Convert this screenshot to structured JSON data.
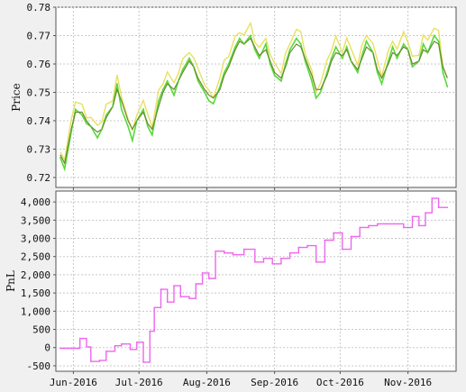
{
  "figure": {
    "background": "#f0f0f0",
    "plot_background": "#ffffff",
    "grid_color": "#c8c8c8"
  },
  "chart_data": [
    {
      "type": "line",
      "ylabel": "Price",
      "xlabel": "",
      "x_tick_labels": [
        "Jun-2016",
        "Jul-2016",
        "Aug-2016",
        "Sep-2016",
        "Oct-2016",
        "Nov-2016"
      ],
      "x_ticks": [
        "2016-06-01",
        "2016-07-01",
        "2016-08-01",
        "2016-09-01",
        "2016-10-01",
        "2016-11-01"
      ],
      "xlim": [
        "2016-05-24",
        "2016-11-23"
      ],
      "y_tick_labels": [
        "0.72",
        "0.73",
        "0.74",
        "0.75",
        "0.76",
        "0.77",
        "0.78"
      ],
      "ylim": [
        0.7165,
        0.78
      ],
      "grid": true,
      "colors": {
        "high": "#e8e060",
        "close": "#5ad83c",
        "smooth": "#6a8a30"
      },
      "x": [
        "2016-05-26",
        "2016-05-28",
        "2016-05-31",
        "2016-06-02",
        "2016-06-05",
        "2016-06-07",
        "2016-06-09",
        "2016-06-12",
        "2016-06-14",
        "2016-06-16",
        "2016-06-19",
        "2016-06-21",
        "2016-06-23",
        "2016-06-26",
        "2016-06-28",
        "2016-06-30",
        "2016-07-03",
        "2016-07-05",
        "2016-07-07",
        "2016-07-10",
        "2016-07-12",
        "2016-07-14",
        "2016-07-17",
        "2016-07-19",
        "2016-07-21",
        "2016-07-24",
        "2016-07-26",
        "2016-07-28",
        "2016-07-31",
        "2016-08-02",
        "2016-08-04",
        "2016-08-07",
        "2016-08-09",
        "2016-08-11",
        "2016-08-14",
        "2016-08-16",
        "2016-08-18",
        "2016-08-21",
        "2016-08-23",
        "2016-08-25",
        "2016-08-28",
        "2016-08-30",
        "2016-09-01",
        "2016-09-04",
        "2016-09-06",
        "2016-09-08",
        "2016-09-11",
        "2016-09-13",
        "2016-09-15",
        "2016-09-18",
        "2016-09-20",
        "2016-09-22",
        "2016-09-25",
        "2016-09-27",
        "2016-09-29",
        "2016-10-02",
        "2016-10-04",
        "2016-10-06",
        "2016-10-09",
        "2016-10-11",
        "2016-10-13",
        "2016-10-16",
        "2016-10-18",
        "2016-10-20",
        "2016-10-23",
        "2016-10-25",
        "2016-10-27",
        "2016-10-30",
        "2016-11-01",
        "2016-11-03",
        "2016-11-06",
        "2016-11-08",
        "2016-11-10",
        "2016-11-13",
        "2016-11-15",
        "2016-11-17",
        "2016-11-19"
      ],
      "series": [
        {
          "values": [
            0.727,
            0.723,
            0.736,
            0.744,
            0.742,
            0.739,
            0.738,
            0.734,
            0.737,
            0.742,
            0.745,
            0.753,
            0.744,
            0.738,
            0.733,
            0.74,
            0.744,
            0.738,
            0.735,
            0.747,
            0.751,
            0.754,
            0.749,
            0.754,
            0.758,
            0.762,
            0.759,
            0.754,
            0.75,
            0.747,
            0.746,
            0.752,
            0.757,
            0.76,
            0.766,
            0.769,
            0.767,
            0.77,
            0.765,
            0.762,
            0.767,
            0.76,
            0.756,
            0.754,
            0.76,
            0.765,
            0.769,
            0.767,
            0.761,
            0.754,
            0.748,
            0.75,
            0.757,
            0.762,
            0.766,
            0.762,
            0.766,
            0.761,
            0.757,
            0.763,
            0.768,
            0.764,
            0.757,
            0.753,
            0.761,
            0.766,
            0.762,
            0.767,
            0.765,
            0.759,
            0.761,
            0.767,
            0.764,
            0.77,
            0.768,
            0.757,
            0.752
          ]
        },
        {
          "values": [
            0.728,
            0.725,
            0.737,
            0.743,
            0.743,
            0.74,
            0.738,
            0.736,
            0.737,
            0.741,
            0.745,
            0.751,
            0.747,
            0.74,
            0.737,
            0.74,
            0.743,
            0.739,
            0.737,
            0.745,
            0.75,
            0.753,
            0.751,
            0.754,
            0.757,
            0.761,
            0.759,
            0.755,
            0.751,
            0.749,
            0.748,
            0.751,
            0.756,
            0.759,
            0.765,
            0.768,
            0.767,
            0.769,
            0.766,
            0.763,
            0.765,
            0.761,
            0.757,
            0.755,
            0.759,
            0.764,
            0.767,
            0.766,
            0.762,
            0.756,
            0.751,
            0.751,
            0.756,
            0.761,
            0.764,
            0.763,
            0.765,
            0.761,
            0.758,
            0.762,
            0.766,
            0.764,
            0.758,
            0.755,
            0.76,
            0.764,
            0.763,
            0.766,
            0.765,
            0.76,
            0.761,
            0.765,
            0.764,
            0.768,
            0.767,
            0.759,
            0.755
          ]
        }
      ]
    },
    {
      "type": "line",
      "ylabel": "PnL",
      "xlabel": "",
      "x_tick_labels": [
        "Jun-2016",
        "Jul-2016",
        "Aug-2016",
        "Sep-2016",
        "Oct-2016",
        "Nov-2016"
      ],
      "x_ticks": [
        "2016-06-01",
        "2016-07-01",
        "2016-08-01",
        "2016-09-01",
        "2016-10-01",
        "2016-11-01"
      ],
      "xlim": [
        "2016-05-24",
        "2016-11-23"
      ],
      "y_tick_labels": [
        "-500",
        "0",
        "500",
        "1,000",
        "1,500",
        "2,000",
        "2,500",
        "3,000",
        "3,500",
        "4,000"
      ],
      "ylim": [
        -650,
        4300
      ],
      "grid": true,
      "colors": {
        "pnl": "#ee66ee"
      },
      "x": [
        "2016-05-26",
        "2016-06-01",
        "2016-06-04",
        "2016-06-07",
        "2016-06-09",
        "2016-06-13",
        "2016-06-16",
        "2016-06-20",
        "2016-06-23",
        "2016-06-27",
        "2016-06-30",
        "2016-07-03",
        "2016-07-06",
        "2016-07-08",
        "2016-07-11",
        "2016-07-14",
        "2016-07-17",
        "2016-07-20",
        "2016-07-24",
        "2016-07-27",
        "2016-07-30",
        "2016-08-02",
        "2016-08-05",
        "2016-08-09",
        "2016-08-13",
        "2016-08-18",
        "2016-08-23",
        "2016-08-27",
        "2016-08-31",
        "2016-09-04",
        "2016-09-08",
        "2016-09-12",
        "2016-09-16",
        "2016-09-20",
        "2016-09-24",
        "2016-09-28",
        "2016-10-02",
        "2016-10-06",
        "2016-10-10",
        "2016-10-14",
        "2016-10-18",
        "2016-10-22",
        "2016-10-26",
        "2016-10-30",
        "2016-11-03",
        "2016-11-06",
        "2016-11-09",
        "2016-11-12",
        "2016-11-15",
        "2016-11-19"
      ],
      "series": [
        {
          "values": [
            -20,
            -20,
            250,
            20,
            -380,
            -350,
            -100,
            50,
            100,
            -50,
            150,
            -400,
            450,
            1100,
            1600,
            1250,
            1700,
            1400,
            1350,
            1750,
            2050,
            1900,
            2650,
            2600,
            2550,
            2700,
            2350,
            2450,
            2300,
            2450,
            2600,
            2750,
            2800,
            2350,
            2950,
            3150,
            2700,
            3050,
            3300,
            3350,
            3400,
            3400,
            3400,
            3300,
            3600,
            3350,
            3700,
            4100,
            3850,
            3850
          ]
        }
      ]
    }
  ]
}
